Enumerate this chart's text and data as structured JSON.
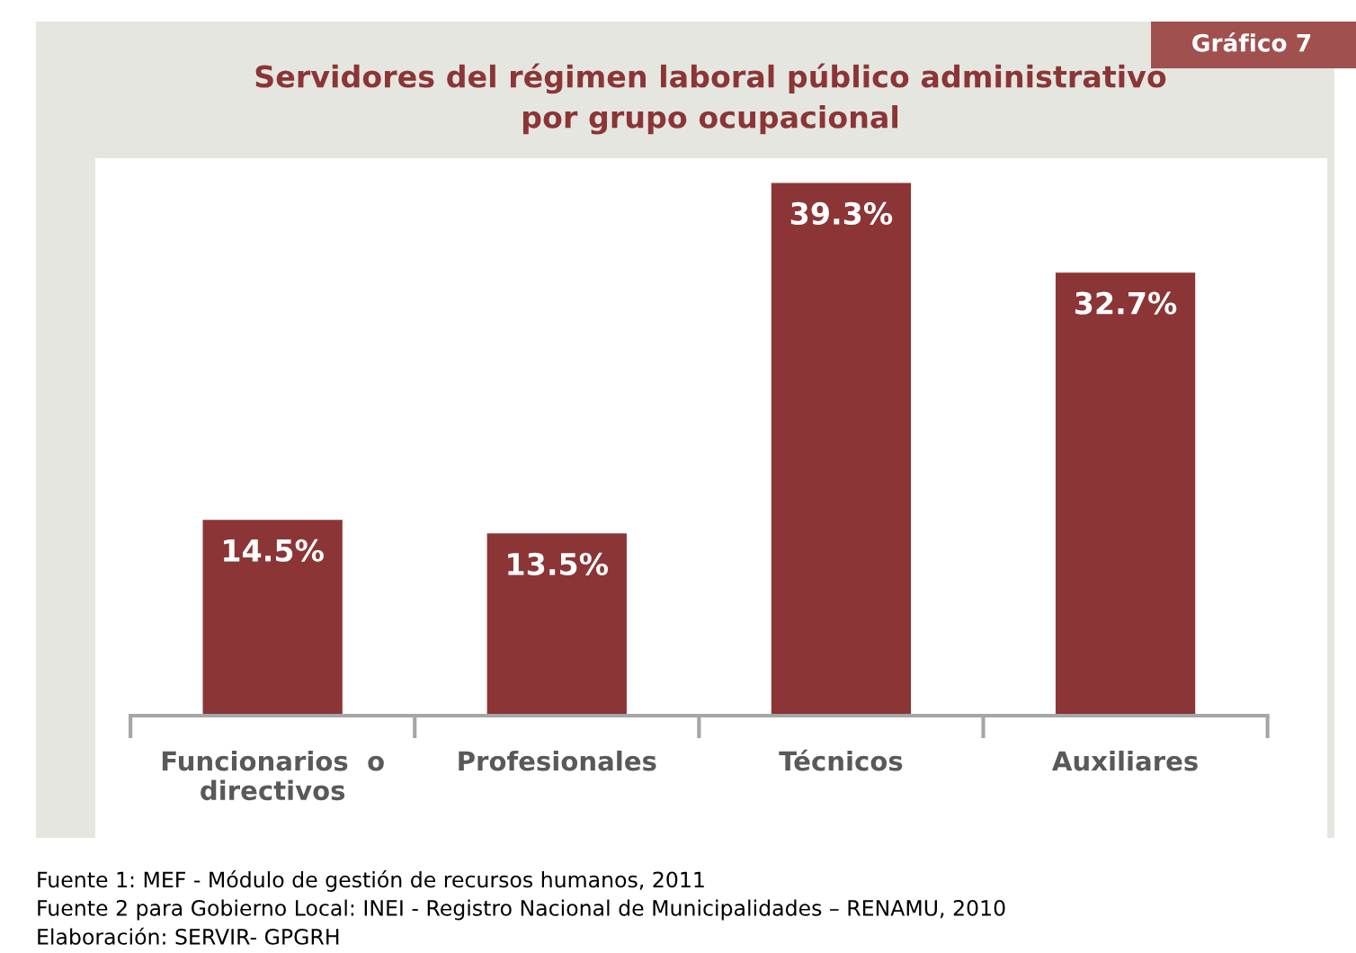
{
  "chart_data": {
    "type": "bar",
    "title": "Servidores del régimen laboral público administrativo\npor grupo ocupacional",
    "categories": [
      "Funcionarios  o\ndirectivos",
      "Profesionales",
      "Técnicos",
      "Auxiliares"
    ],
    "values": [
      14.5,
      13.5,
      39.3,
      32.7
    ],
    "value_labels": [
      "14.5%",
      "13.5%",
      "39.3%",
      "32.7%"
    ],
    "color": "#8b3536",
    "grid": false,
    "legend": false,
    "annotations": [
      "Gráfico 7",
      "Fuente 1: MEF - Módulo de gestión de recursos humanos, 2011",
      "Fuente 2 para Gobierno Local: INEI - Registro Nacional de Municipalidades – RENAMU, 2010",
      "Elaboración: SERVIR- GPGRH"
    ]
  }
}
